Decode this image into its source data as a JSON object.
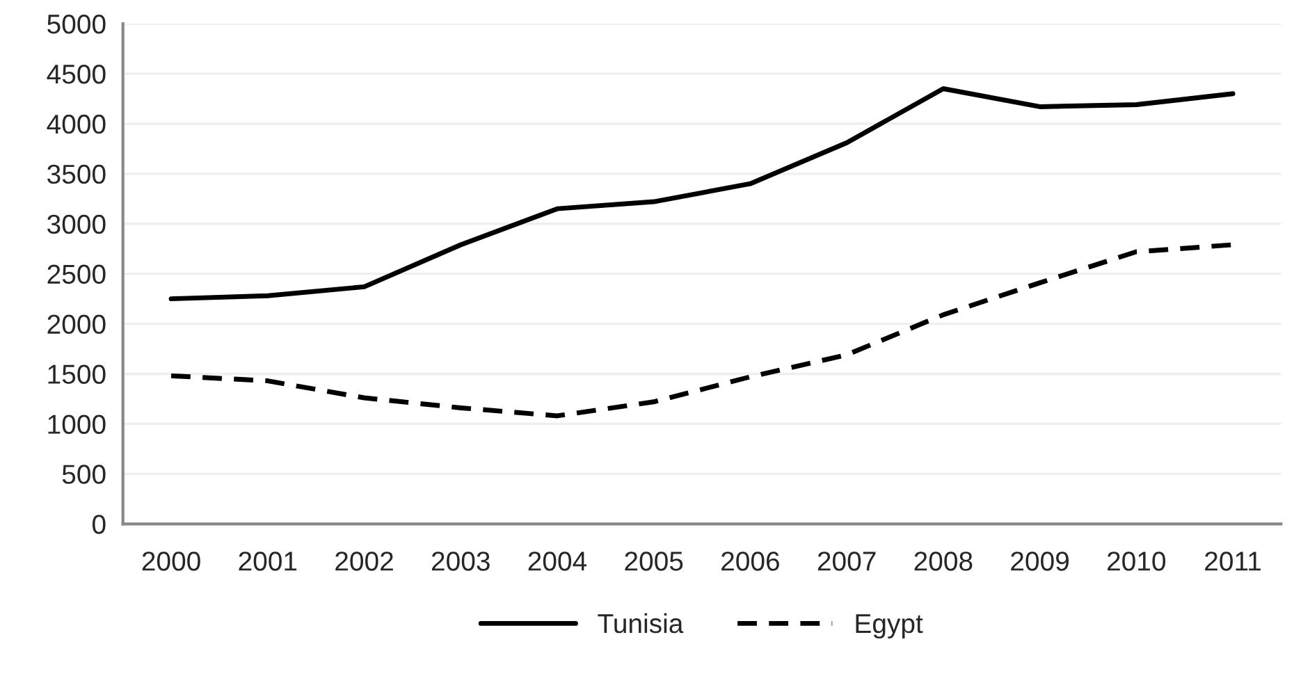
{
  "chart_data": {
    "type": "line",
    "categories": [
      "2000",
      "2001",
      "2002",
      "2003",
      "2004",
      "2005",
      "2006",
      "2007",
      "2008",
      "2009",
      "2010",
      "2011"
    ],
    "series": [
      {
        "name": "Tunisia",
        "color": "#000000",
        "line_style": "solid",
        "values": [
          2250,
          2280,
          2370,
          2790,
          3150,
          3220,
          3400,
          3810,
          4350,
          4170,
          4190,
          4300
        ]
      },
      {
        "name": "Egypt",
        "color": "#000000",
        "line_style": "dashed",
        "values": [
          1480,
          1430,
          1260,
          1160,
          1080,
          1220,
          1470,
          1690,
          2090,
          2410,
          2720,
          2790
        ]
      }
    ],
    "ylim": [
      0,
      5000
    ],
    "yticks": [
      0,
      500,
      1000,
      1500,
      2000,
      2500,
      3000,
      3500,
      4000,
      4500,
      5000
    ],
    "grid": "y",
    "legend": "bottom",
    "marker": "none"
  }
}
